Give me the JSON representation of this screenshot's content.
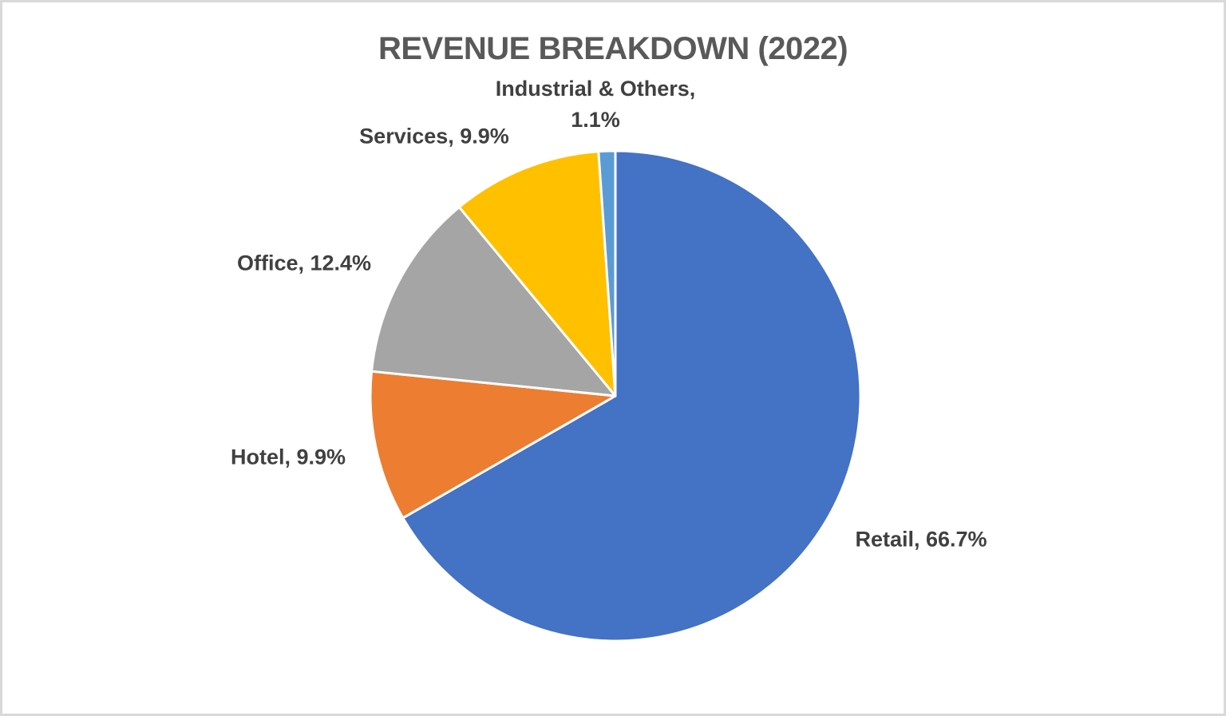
{
  "chart_data": {
    "type": "pie",
    "title": "REVENUE BREAKDOWN (2022)",
    "categories": [
      "Retail",
      "Hotel",
      "Office",
      "Services",
      "Industrial & Others"
    ],
    "values": [
      66.7,
      9.9,
      12.4,
      9.9,
      1.1
    ],
    "series": [
      {
        "label": "Retail",
        "value": 66.7,
        "color": "#4472C4",
        "display_label": "Retail, 66.7%"
      },
      {
        "label": "Hotel",
        "value": 9.9,
        "color": "#ED7D31",
        "display_label": "Hotel, 9.9%"
      },
      {
        "label": "Office",
        "value": 12.4,
        "color": "#A5A5A5",
        "display_label": "Office, 12.4%"
      },
      {
        "label": "Services",
        "value": 9.9,
        "color": "#FFC000",
        "display_label": "Services, 9.9%"
      },
      {
        "label": "Industrial & Others",
        "value": 1.1,
        "color": "#5B9BD5",
        "display_label": "Industrial & Others, 1.1%"
      }
    ],
    "start_angle_deg": 0,
    "direction": "clockwise",
    "label_position": "outside",
    "legend": "none",
    "slice_border_color": "#FFFFFF",
    "title_color": "#595959",
    "label_color": "#404040",
    "frame_color": "#D9D9D9",
    "background_color": "#FFFFFF"
  }
}
